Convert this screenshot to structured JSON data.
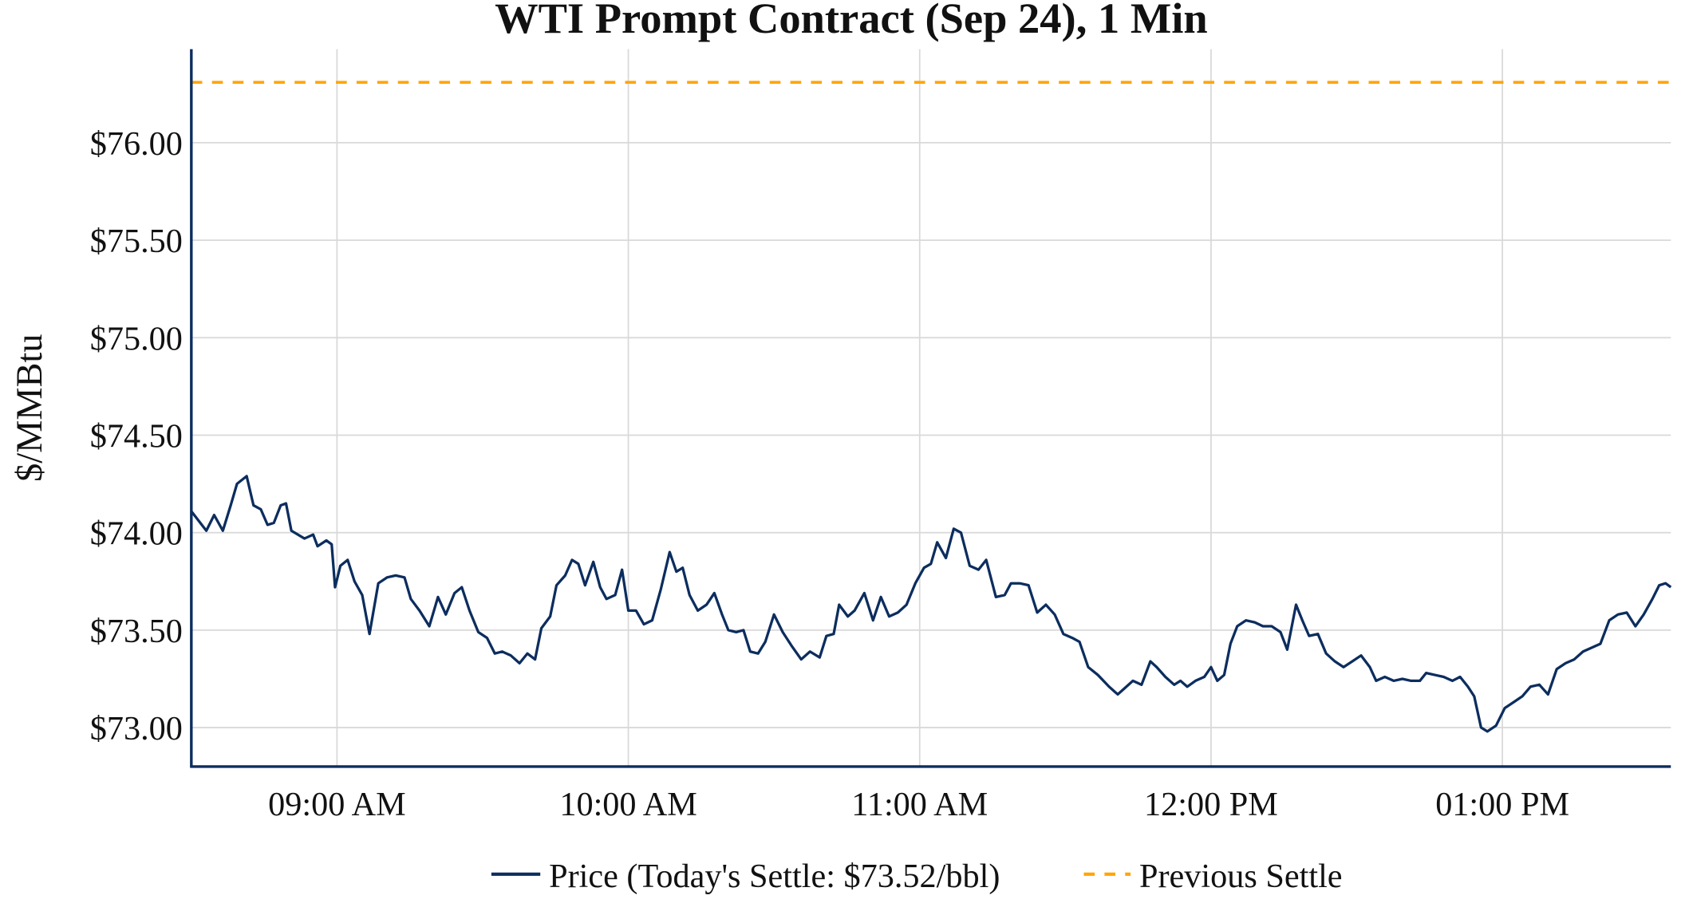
{
  "chart_data": {
    "type": "line",
    "title": "WTI Prompt Contract (Sep 24), 1 Min",
    "xlabel": "",
    "ylabel": "$/MMBtu",
    "x_units": "minutes after 08:30",
    "xlim": [
      0,
      304.7
    ],
    "ylim": [
      72.8,
      76.48
    ],
    "grid": true,
    "legend_position": "bottom-center",
    "x_ticks": [
      {
        "value": 30,
        "label": "09:00 AM"
      },
      {
        "value": 90,
        "label": "10:00 AM"
      },
      {
        "value": 150,
        "label": "11:00 AM"
      },
      {
        "value": 210,
        "label": "12:00 PM"
      },
      {
        "value": 270,
        "label": "01:00 PM"
      }
    ],
    "y_ticks": [
      {
        "value": 73.0,
        "label": "$73.00"
      },
      {
        "value": 73.5,
        "label": "$73.50"
      },
      {
        "value": 74.0,
        "label": "$74.00"
      },
      {
        "value": 74.5,
        "label": "$74.50"
      },
      {
        "value": 75.0,
        "label": "$75.00"
      },
      {
        "value": 75.5,
        "label": "$75.50"
      },
      {
        "value": 76.0,
        "label": "$76.00"
      }
    ],
    "series": [
      {
        "name": "Price (Today's Settle: $73.52/bbl)",
        "color": "#0c2d5e",
        "style": "solid",
        "x": [
          0,
          3.1,
          4.7,
          6.5,
          8.1,
          9.4,
          11.4,
          12.8,
          14.3,
          15.7,
          17.0,
          18.4,
          19.5,
          20.6,
          23.3,
          25.1,
          26.0,
          27.8,
          28.9,
          29.6,
          30.7,
          32.2,
          33.6,
          35.2,
          36.7,
          38.5,
          40.3,
          42.1,
          43.9,
          45.2,
          47.0,
          49.0,
          50.8,
          52.4,
          54.2,
          55.7,
          57.3,
          59.1,
          60.9,
          62.5,
          64.0,
          65.8,
          67.6,
          69.2,
          70.8,
          72.1,
          73.9,
          75.2,
          77.0,
          78.4,
          79.7,
          81.1,
          82.8,
          84.2,
          85.5,
          87.3,
          88.7,
          90.0,
          91.6,
          93.2,
          94.9,
          96.7,
          98.5,
          99.9,
          101.2,
          102.6,
          104.3,
          106.1,
          107.7,
          109.3,
          110.6,
          112.2,
          113.7,
          115.1,
          116.7,
          118.2,
          120.0,
          121.8,
          123.6,
          125.6,
          127.4,
          129.4,
          130.8,
          132.3,
          133.4,
          135.2,
          136.6,
          138.6,
          140.4,
          142.0,
          143.7,
          145.5,
          147.3,
          149.1,
          150.9,
          152.3,
          153.6,
          155.4,
          157.0,
          158.5,
          160.3,
          162.1,
          163.7,
          165.7,
          167.5,
          168.8,
          170.6,
          172.4,
          174.2,
          176.0,
          177.8,
          179.6,
          181.4,
          182.9,
          184.7,
          186.7,
          189.0,
          190.8,
          192.1,
          193.9,
          195.7,
          197.5,
          198.8,
          200.6,
          202.4,
          203.7,
          205.1,
          206.8,
          208.6,
          210.0,
          211.3,
          212.7,
          214.0,
          215.4,
          217.2,
          219.0,
          220.7,
          222.5,
          224.3,
          225.7,
          227.5,
          228.8,
          230.2,
          232.0,
          233.7,
          235.5,
          237.3,
          239.1,
          240.9,
          242.7,
          244.0,
          245.8,
          247.6,
          249.4,
          251.2,
          253.0,
          254.3,
          256.1,
          257.9,
          259.7,
          261.3,
          262.9,
          264.2,
          265.6,
          266.9,
          268.7,
          270.5,
          272.3,
          274.1,
          275.8,
          277.6,
          279.4,
          281.2,
          283.0,
          284.8,
          286.6,
          288.4,
          290.2,
          292.0,
          293.8,
          295.6,
          297.4,
          299.1,
          300.9,
          302.3,
          303.6,
          304.7
        ],
        "values": [
          74.11,
          74.01,
          74.09,
          74.01,
          74.14,
          74.25,
          74.29,
          74.14,
          74.12,
          74.04,
          74.05,
          74.14,
          74.15,
          74.01,
          73.97,
          73.99,
          73.93,
          73.96,
          73.94,
          73.72,
          73.83,
          73.86,
          73.75,
          73.68,
          73.48,
          73.74,
          73.77,
          73.78,
          73.77,
          73.66,
          73.6,
          73.52,
          73.67,
          73.58,
          73.69,
          73.72,
          73.6,
          73.49,
          73.46,
          73.38,
          73.39,
          73.37,
          73.33,
          73.38,
          73.35,
          73.51,
          73.57,
          73.73,
          73.78,
          73.86,
          73.84,
          73.73,
          73.85,
          73.72,
          73.66,
          73.68,
          73.81,
          73.6,
          73.6,
          73.53,
          73.55,
          73.71,
          73.9,
          73.8,
          73.82,
          73.68,
          73.6,
          73.63,
          73.69,
          73.58,
          73.5,
          73.49,
          73.5,
          73.39,
          73.38,
          73.44,
          73.58,
          73.49,
          73.42,
          73.35,
          73.39,
          73.36,
          73.47,
          73.48,
          73.63,
          73.57,
          73.6,
          73.69,
          73.55,
          73.67,
          73.57,
          73.59,
          73.63,
          73.74,
          73.82,
          73.84,
          73.95,
          73.87,
          74.02,
          74.0,
          73.83,
          73.81,
          73.86,
          73.67,
          73.68,
          73.74,
          73.74,
          73.73,
          73.59,
          73.63,
          73.58,
          73.48,
          73.46,
          73.44,
          73.31,
          73.27,
          73.21,
          73.17,
          73.2,
          73.24,
          73.22,
          73.34,
          73.31,
          73.26,
          73.22,
          73.24,
          73.21,
          73.24,
          73.26,
          73.31,
          73.24,
          73.27,
          73.43,
          73.52,
          73.55,
          73.54,
          73.52,
          73.52,
          73.49,
          73.4,
          73.63,
          73.55,
          73.47,
          73.48,
          73.38,
          73.34,
          73.31,
          73.34,
          73.37,
          73.31,
          73.24,
          73.26,
          73.24,
          73.25,
          73.24,
          73.24,
          73.28,
          73.27,
          73.26,
          73.24,
          73.26,
          73.21,
          73.16,
          73.0,
          72.98,
          73.01,
          73.1,
          73.13,
          73.16,
          73.21,
          73.22,
          73.17,
          73.3,
          73.33,
          73.35,
          73.39,
          73.41,
          73.43,
          73.55,
          73.58,
          73.59,
          73.52,
          73.58,
          73.66,
          73.73,
          73.74,
          73.72
        ]
      },
      {
        "name": "Previous Settle",
        "color": "#ffa500",
        "style": "dashed",
        "value": 76.31
      }
    ]
  }
}
